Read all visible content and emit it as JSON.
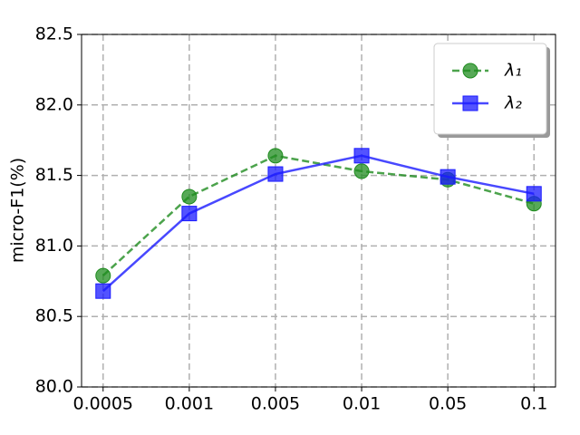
{
  "chart_data": {
    "type": "line",
    "y_label": "micro-F1(%)",
    "categories": [
      "0.0005",
      "0.001",
      "0.005",
      "0.01",
      "0.05",
      "0.1"
    ],
    "series": [
      {
        "name": "λ₁",
        "color": "#1f8c1f",
        "marker": "circle",
        "dashed": true,
        "values": [
          80.79,
          81.35,
          81.64,
          81.53,
          81.47,
          81.3
        ]
      },
      {
        "name": "λ₂",
        "color": "#1a1aff",
        "marker": "square",
        "dashed": false,
        "values": [
          80.68,
          81.23,
          81.51,
          81.64,
          81.49,
          81.37
        ]
      }
    ],
    "ylim": [
      80.0,
      82.5
    ],
    "yticks": [
      {
        "value": 80,
        "label": "80.0"
      },
      {
        "value": 80.5,
        "label": "80.5"
      },
      {
        "value": 81,
        "label": "81.0"
      },
      {
        "value": 81.5,
        "label": "81.5"
      },
      {
        "value": 82,
        "label": "82.0"
      },
      {
        "value": 82.5,
        "label": "82.5"
      }
    ],
    "grid": true,
    "legend": "upper-right"
  }
}
